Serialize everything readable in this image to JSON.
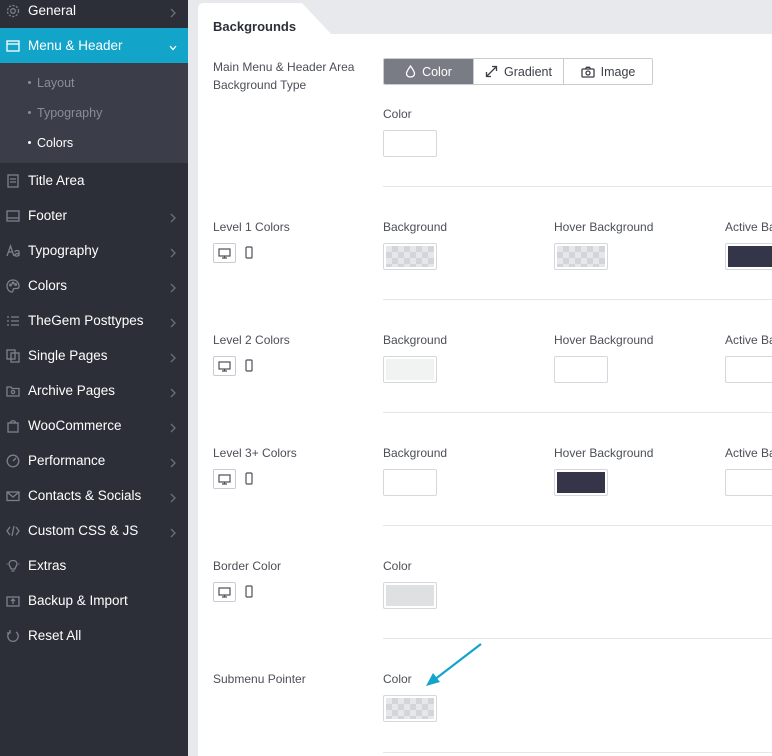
{
  "sidebar": {
    "items": [
      {
        "label": "General",
        "icon": "gear-icon"
      },
      {
        "label": "Menu & Header",
        "icon": "window-icon"
      },
      {
        "label": "Title Area",
        "icon": "document-icon"
      },
      {
        "label": "Footer",
        "icon": "footer-icon"
      },
      {
        "label": "Typography",
        "icon": "font-icon"
      },
      {
        "label": "Colors",
        "icon": "palette-icon"
      },
      {
        "label": "TheGem Posttypes",
        "icon": "list-icon"
      },
      {
        "label": "Single Pages",
        "icon": "pages-icon"
      },
      {
        "label": "Archive Pages",
        "icon": "archive-icon"
      },
      {
        "label": "WooCommerce",
        "icon": "bag-icon"
      },
      {
        "label": "Performance",
        "icon": "gauge-icon"
      },
      {
        "label": "Contacts & Socials",
        "icon": "envelope-icon"
      },
      {
        "label": "Custom CSS & JS",
        "icon": "code-icon"
      },
      {
        "label": "Extras",
        "icon": "bulb-icon"
      },
      {
        "label": "Backup & Import",
        "icon": "upload-icon"
      },
      {
        "label": "Reset All",
        "icon": "reset-icon"
      }
    ],
    "sub_items": [
      "Layout",
      "Typography",
      "Colors"
    ]
  },
  "section": {
    "title": "Backgrounds"
  },
  "bg_type": {
    "label": "Main Menu & Header Area Background Type",
    "options": [
      "Color",
      "Gradient",
      "Image"
    ],
    "selected": "Color",
    "color_label": "Color"
  },
  "level1": {
    "label": "Level 1 Colors",
    "background": "Background",
    "hover": "Hover Background",
    "active": "Active Ba"
  },
  "level2": {
    "label": "Level 2 Colors",
    "background": "Background",
    "hover": "Hover Background",
    "active": "Active Ba"
  },
  "level3": {
    "label": "Level 3+ Colors",
    "background": "Background",
    "hover": "Hover Background",
    "active": "Active Ba"
  },
  "border": {
    "label": "Border Color",
    "color": "Color"
  },
  "submenu_pointer": {
    "label": "Submenu Pointer",
    "color": "Color"
  },
  "colors": {
    "accent": "#12a5c9",
    "sidebar": "#2c2f38",
    "dark_swatch": "#343548",
    "light_swatch": "#f1f3f3",
    "border_swatch": "#dde1e2"
  }
}
